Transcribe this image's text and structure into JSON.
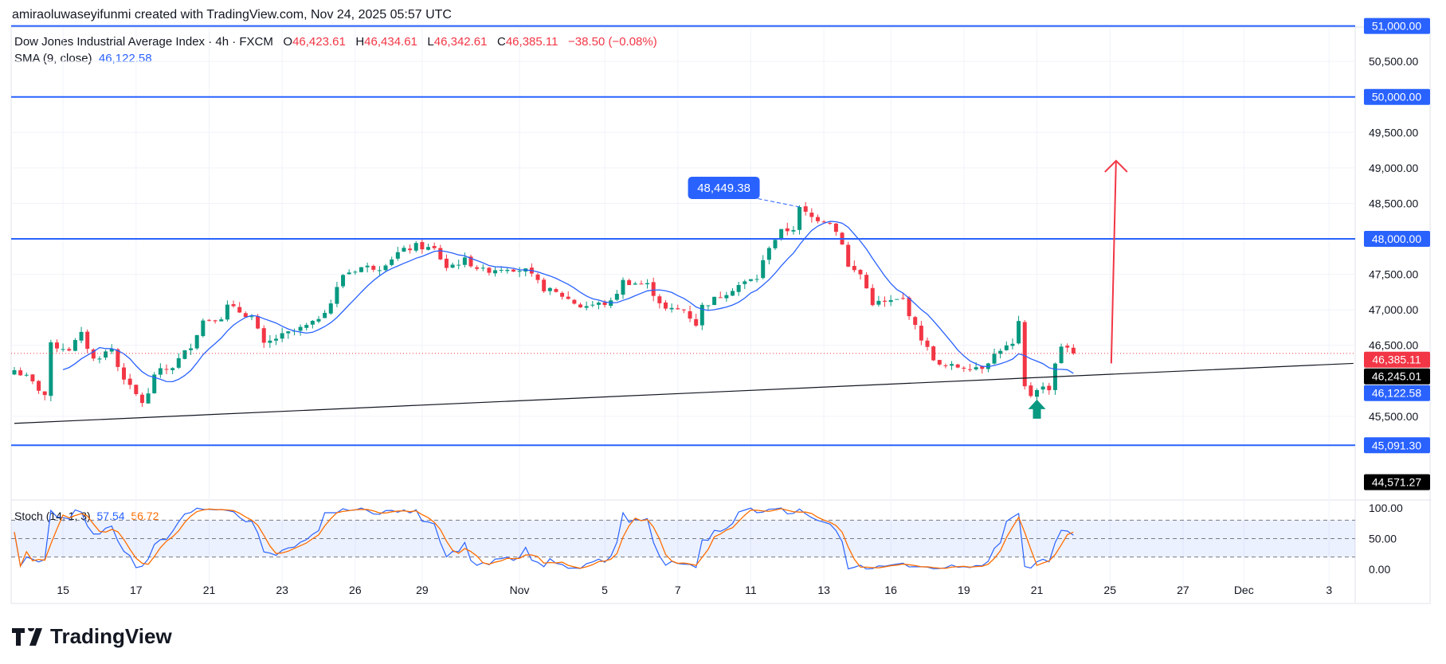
{
  "header": {
    "caption": "amiraoluwaseyifunmi created with TradingView.com, Nov 24, 2025 05:57 UTC"
  },
  "legend": {
    "symbol": "Dow Jones Industrial Average Index · 4h · FXCM",
    "o_label": "O",
    "o": "46,423.61",
    "h_label": "H",
    "h": "46,434.61",
    "l_label": "L",
    "l": "46,342.61",
    "c_label": "C",
    "c": "46,385.11",
    "change": "−38.50 (−0.08%)",
    "sma_label": "SMA (9, close)",
    "sma_value": "46,122.58",
    "stoch_label": "Stoch (14, 1, 3)",
    "stoch_k": "57.54",
    "stoch_d": "56.72"
  },
  "logo": {
    "text": "TradingView"
  },
  "colors": {
    "up": "#089981",
    "down": "#f23645",
    "sma": "#2962ff",
    "stoch_k": "#2962ff",
    "stoch_d": "#ff6d00",
    "level": "#2962ff"
  },
  "chart_data": {
    "type": "candlestick",
    "ylim": [
      44300,
      51100
    ],
    "y_ticks": [
      "50,500.00",
      "49,500.00",
      "49,000.00",
      "48,500.00",
      "47,500.00",
      "47,000.00",
      "46,500.00",
      "45,500.00"
    ],
    "y_tick_values": [
      50500,
      49500,
      49000,
      48500,
      47500,
      47000,
      46500,
      45500
    ],
    "x_ticks": [
      {
        "label": "15",
        "bar": 8
      },
      {
        "label": "17",
        "bar": 20
      },
      {
        "label": "21",
        "bar": 32
      },
      {
        "label": "23",
        "bar": 44
      },
      {
        "label": "26",
        "bar": 56
      },
      {
        "label": "29",
        "bar": 67
      },
      {
        "label": "Nov",
        "bar": 83
      },
      {
        "label": "5",
        "bar": 97
      },
      {
        "label": "7",
        "bar": 109
      },
      {
        "label": "11",
        "bar": 121
      },
      {
        "label": "13",
        "bar": 133
      },
      {
        "label": "16",
        "bar": 144
      },
      {
        "label": "19",
        "bar": 156
      },
      {
        "label": "21",
        "bar": 168
      },
      {
        "label": "25",
        "bar": 180
      },
      {
        "label": "27",
        "bar": 192
      },
      {
        "label": "Dec",
        "bar": 202
      },
      {
        "label": "3",
        "bar": 216
      }
    ],
    "close_path": [
      [
        0,
        46150
      ],
      [
        2,
        46050
      ],
      [
        5,
        45800
      ],
      [
        6,
        46500
      ],
      [
        9,
        46450
      ],
      [
        11,
        46650
      ],
      [
        13,
        46300
      ],
      [
        16,
        46450
      ],
      [
        17,
        46200
      ],
      [
        19,
        45900
      ],
      [
        21,
        45700
      ],
      [
        22,
        45800
      ],
      [
        23,
        46100
      ],
      [
        26,
        46200
      ],
      [
        29,
        46500
      ],
      [
        31,
        46850
      ],
      [
        34,
        46900
      ],
      [
        35,
        47050
      ],
      [
        39,
        46900
      ],
      [
        41,
        46500
      ],
      [
        43,
        46600
      ],
      [
        46,
        46700
      ],
      [
        49,
        46800
      ],
      [
        52,
        47100
      ],
      [
        54,
        47500
      ],
      [
        57,
        47600
      ],
      [
        60,
        47600
      ],
      [
        63,
        47800
      ],
      [
        66,
        47900
      ],
      [
        69,
        47850
      ],
      [
        71,
        47600
      ],
      [
        74,
        47700
      ],
      [
        77,
        47550
      ],
      [
        81,
        47600
      ],
      [
        84,
        47550
      ],
      [
        87,
        47300
      ],
      [
        90,
        47200
      ],
      [
        93,
        47050
      ],
      [
        98,
        47100
      ],
      [
        100,
        47400
      ],
      [
        104,
        47350
      ],
      [
        107,
        47000
      ],
      [
        110,
        47000
      ],
      [
        112,
        46800
      ],
      [
        113,
        47050
      ],
      [
        116,
        47200
      ],
      [
        119,
        47350
      ],
      [
        122,
        47450
      ],
      [
        124,
        47900
      ],
      [
        126,
        48100
      ],
      [
        128,
        48150
      ],
      [
        129,
        48420
      ],
      [
        131,
        48300
      ],
      [
        134,
        48250
      ],
      [
        136,
        47950
      ],
      [
        137,
        47600
      ],
      [
        139,
        47500
      ],
      [
        141,
        47100
      ],
      [
        143,
        47100
      ],
      [
        146,
        47150
      ],
      [
        148,
        46750
      ],
      [
        150,
        46450
      ],
      [
        152,
        46200
      ],
      [
        156,
        46200
      ],
      [
        159,
        46200
      ],
      [
        162,
        46450
      ],
      [
        164,
        46500
      ],
      [
        165,
        46800
      ],
      [
        166,
        45900
      ],
      [
        167,
        45800
      ],
      [
        168,
        45900
      ],
      [
        170,
        45900
      ],
      [
        171,
        46250
      ],
      [
        172,
        46500
      ],
      [
        174,
        46385
      ]
    ],
    "horizontal_levels": [
      {
        "price": 51000,
        "label": "51,000.00"
      },
      {
        "price": 50000,
        "label": "50,000.00"
      },
      {
        "price": 48000,
        "label": "48,000.00"
      },
      {
        "price": 45091.3,
        "label": "45,091.30"
      }
    ],
    "trendline": {
      "from": [
        0,
        45400
      ],
      "to": [
        220,
        46245.01
      ],
      "label": "46,245.01"
    },
    "last_price": {
      "price": 46385.11,
      "label": "46,385.11"
    },
    "sma_tag": {
      "price": 46122.58,
      "label": "46,122.58"
    },
    "low_tag": {
      "price": 44571.27,
      "label": "44,571.27"
    },
    "peak_annotation": {
      "bar": 129,
      "price": 48449.38,
      "label": "48,449.38"
    },
    "target_arrow": {
      "bar": 181,
      "from": 46245,
      "to": 49100
    },
    "buy_arrow": {
      "bar": 168,
      "price": 45600
    },
    "stoch": {
      "ticks": [
        "100.00",
        "50.00",
        "0.00"
      ],
      "upper": 80,
      "mid": 50,
      "lower": 20
    }
  }
}
